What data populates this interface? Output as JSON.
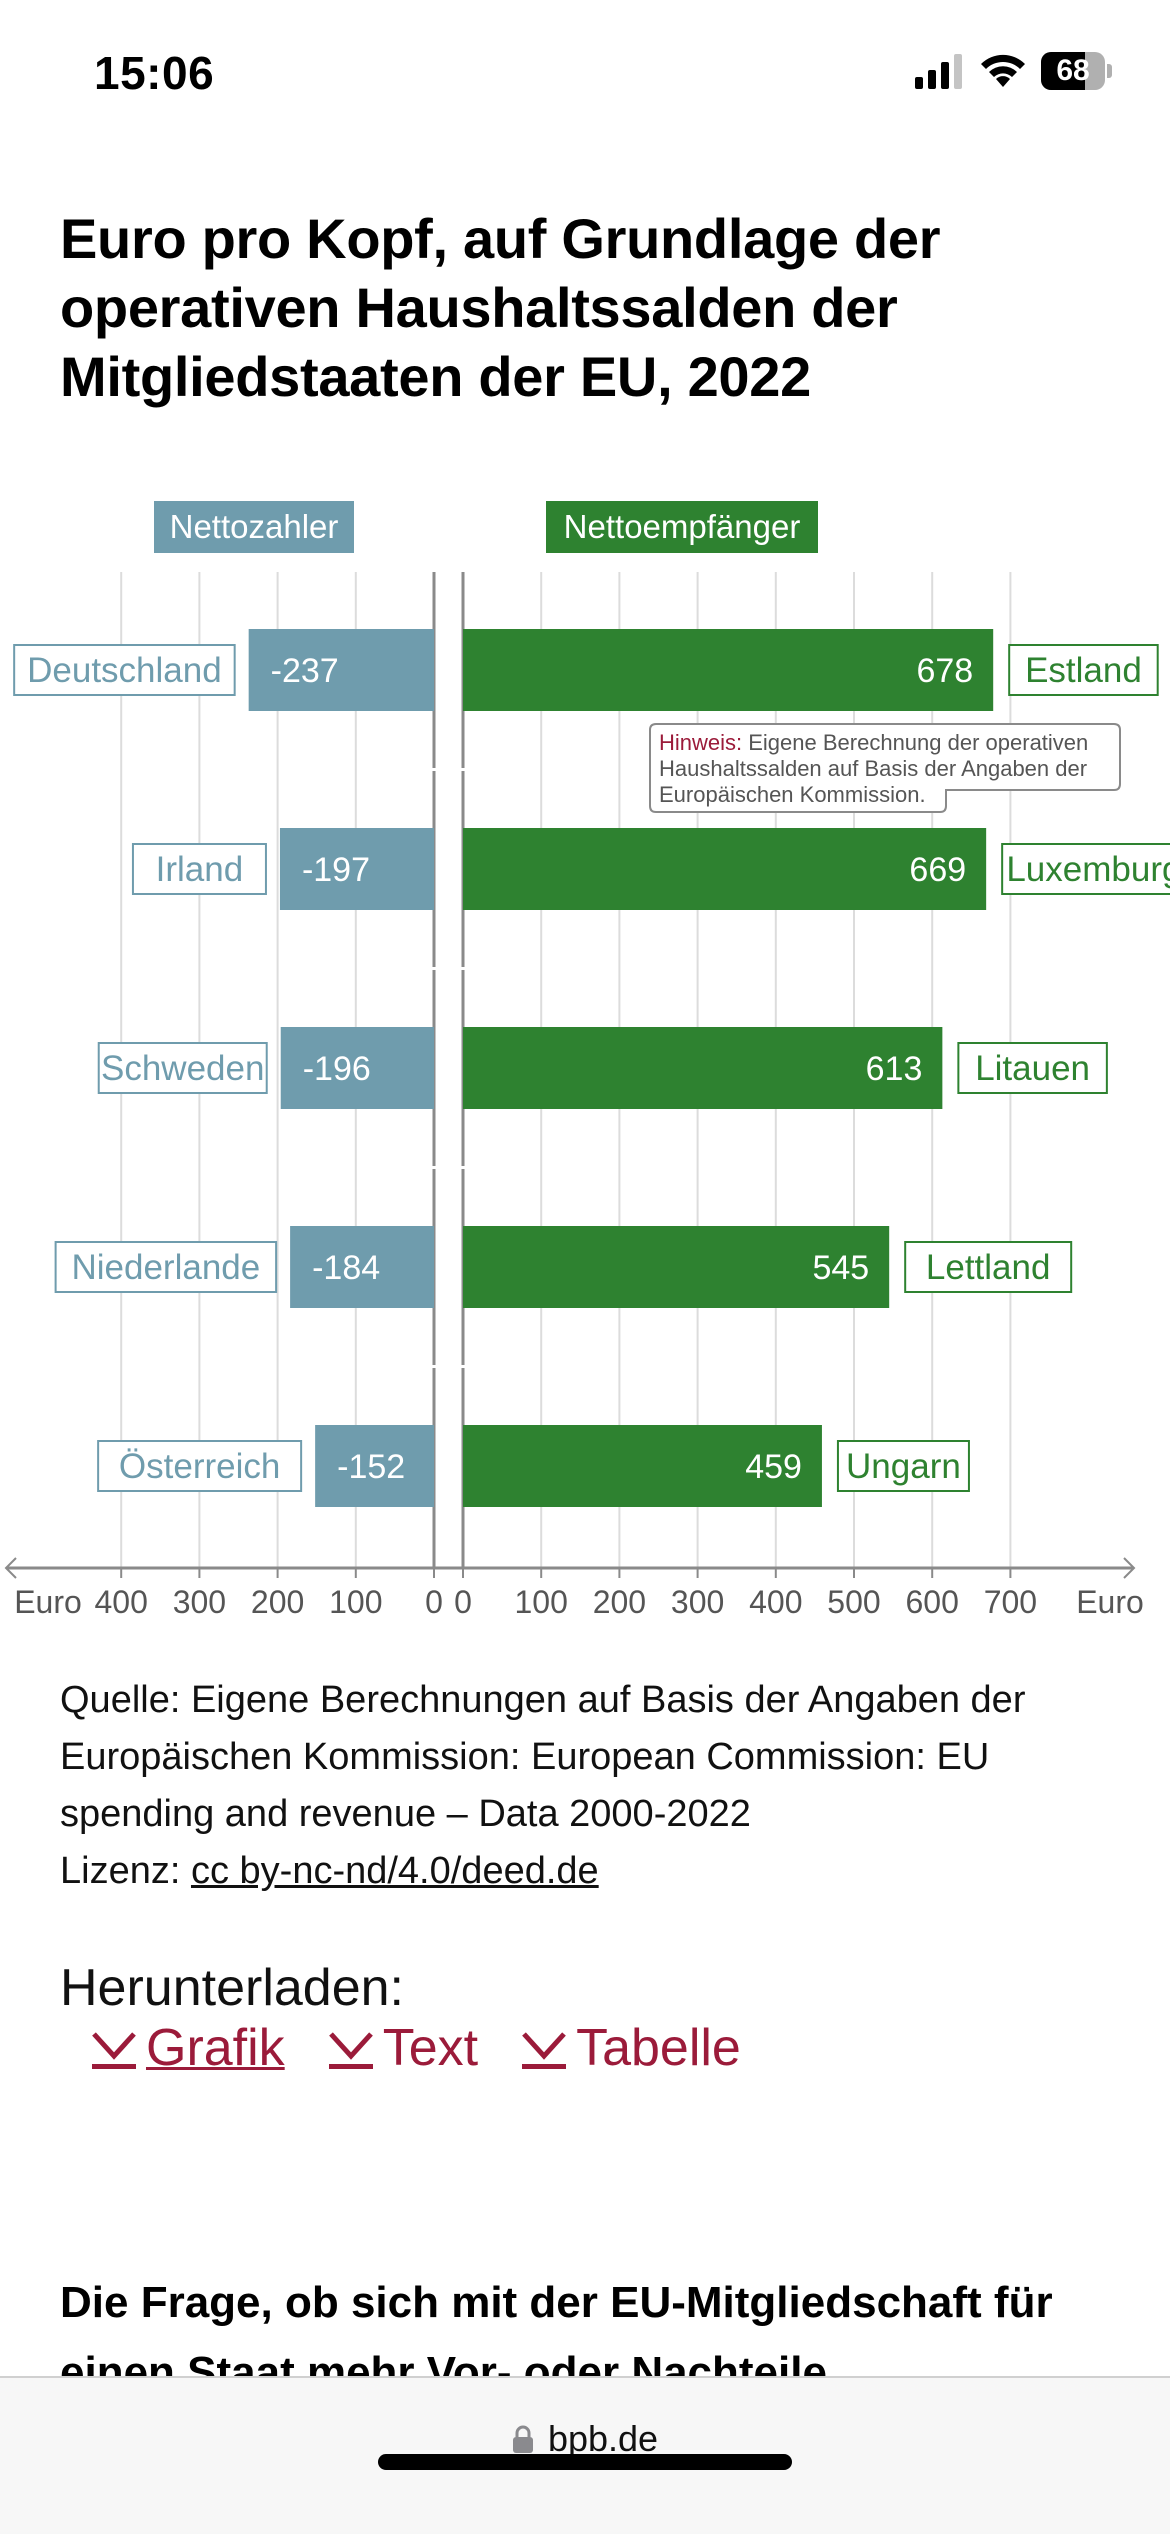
{
  "status_bar": {
    "time": "15:06",
    "battery_percent": 68,
    "battery_label": "68",
    "icons": [
      "signal-icon",
      "wifi-icon",
      "battery-icon"
    ]
  },
  "title": "Euro pro Kopf, auf Grundlage der operativen Haushaltssalden der Mitgliedstaaten der EU, 2022",
  "chart_data": {
    "type": "bar",
    "orientation": "horizontal-diverging",
    "title": "Euro pro Kopf, auf Grundlage der operativen Haushaltssalden der Mitgliedstaaten der EU, 2022",
    "left_panel": {
      "legend_label": "Nettozahler",
      "color": "#6f9cad",
      "categories": [
        "Deutschland",
        "Irland",
        "Schweden",
        "Niederlande",
        "Österreich"
      ],
      "values": [
        -237,
        -197,
        -196,
        -184,
        -152
      ],
      "value_labels": [
        "-237",
        "-197",
        "-196",
        "-184",
        "-152"
      ],
      "xlim": [
        400,
        0
      ],
      "ticks": [
        "400",
        "300",
        "200",
        "100",
        "0"
      ],
      "unit_label": "Euro"
    },
    "right_panel": {
      "legend_label": "Nettoempfänger",
      "color": "#2e8230",
      "categories": [
        "Estland",
        "Luxemburg",
        "Litauen",
        "Lettland",
        "Ungarn"
      ],
      "values": [
        678,
        669,
        613,
        545,
        459
      ],
      "value_labels": [
        "678",
        "669",
        "613",
        "545",
        "459"
      ],
      "xlim": [
        0,
        700
      ],
      "ticks": [
        "0",
        "100",
        "200",
        "300",
        "400",
        "500",
        "600",
        "700"
      ],
      "unit_label": "Euro"
    },
    "annotation": {
      "label": "Hinweis:",
      "lines": [
        "Eigene Berechnung der operativen",
        "Haushaltssalden auf Basis der Angaben der",
        "Europäischen Kommission."
      ],
      "label_color": "#9b1b3a"
    },
    "grid": true
  },
  "source": {
    "text": "Quelle: Eigene Berechnungen auf Basis der Angaben der Europäischen Kommission: European Commission: EU spending and revenue – Data 2000-2022",
    "license_prefix": "Lizenz: ",
    "license_link": "cc by-nc-nd/4.0/deed.de"
  },
  "downloads": {
    "title": "Herunterladen:",
    "links": [
      {
        "label": "Grafik",
        "icon": "download-icon"
      },
      {
        "label": "Text",
        "icon": "download-icon"
      },
      {
        "label": "Tabelle",
        "icon": "download-icon"
      }
    ],
    "accent": "#9b1b3a"
  },
  "next_heading": "Die Frage, ob sich mit der EU-Mitgliedschaft für einen Staat mehr Vor- oder Nachteile",
  "browser": {
    "url": "bpb.de"
  }
}
